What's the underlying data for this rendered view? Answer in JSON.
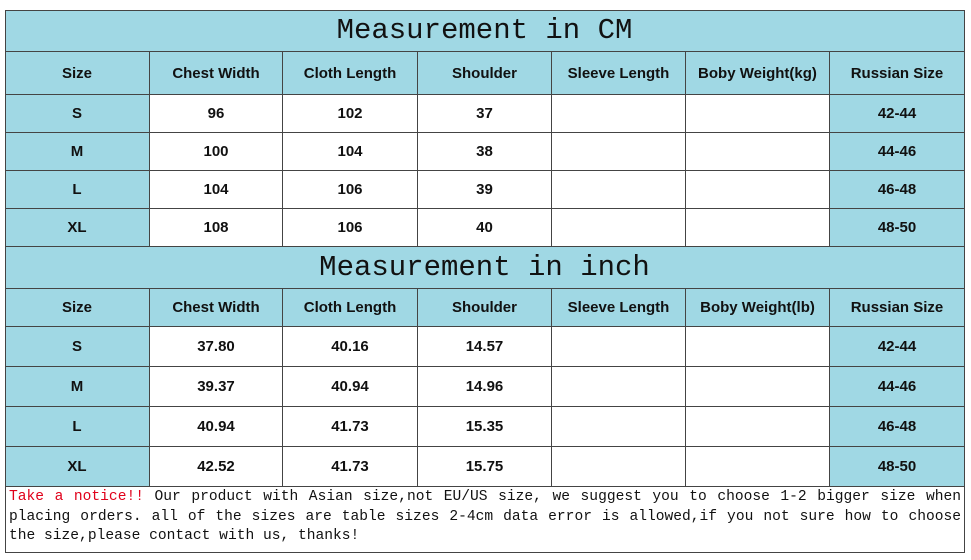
{
  "sections": [
    {
      "title": "Measurement in CM",
      "columns": [
        "Size",
        "Chest Width",
        "Cloth Length",
        "Shoulder",
        "Sleeve Length",
        "Boby Weight(kg)",
        "Russian Size"
      ],
      "rows": [
        {
          "size": "S",
          "chest_width": "96",
          "cloth_length": "102",
          "shoulder": "37",
          "russian_size": "42-44"
        },
        {
          "size": "M",
          "chest_width": "100",
          "cloth_length": "104",
          "shoulder": "38",
          "russian_size": "44-46"
        },
        {
          "size": "L",
          "chest_width": "104",
          "cloth_length": "106",
          "shoulder": "39",
          "russian_size": "46-48"
        },
        {
          "size": "XL",
          "chest_width": "108",
          "cloth_length": "106",
          "shoulder": "40",
          "russian_size": "48-50"
        }
      ]
    },
    {
      "title": "Measurement in inch",
      "columns": [
        "Size",
        "Chest Width",
        "Cloth Length",
        "Shoulder",
        "Sleeve Length",
        "Boby Weight(lb)",
        "Russian Size"
      ],
      "rows": [
        {
          "size": "S",
          "chest_width": "37.80",
          "cloth_length": "40.16",
          "shoulder": "14.57",
          "russian_size": "42-44"
        },
        {
          "size": "M",
          "chest_width": "39.37",
          "cloth_length": "40.94",
          "shoulder": "14.96",
          "russian_size": "44-46"
        },
        {
          "size": "L",
          "chest_width": "40.94",
          "cloth_length": "41.73",
          "shoulder": "15.35",
          "russian_size": "46-48"
        },
        {
          "size": "XL",
          "chest_width": "42.52",
          "cloth_length": "41.73",
          "shoulder": "15.75",
          "russian_size": "48-50"
        }
      ]
    }
  ],
  "notice": {
    "label": "Take a notice!!",
    "text": " Our product with Asian size,not EU/US size, we suggest you to choose 1-2 bigger size when placing orders. all of the sizes are table sizes 2-4cm data error is allowed,if you not sure how to choose the size,please contact with us, thanks!"
  }
}
